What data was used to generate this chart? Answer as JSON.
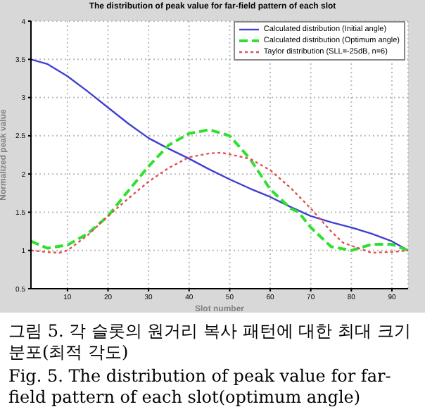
{
  "chart_data": {
    "type": "line",
    "title": "The distribution of peak value for far-field pattern of each slot",
    "xlabel": "Slot number",
    "ylabel": "Normalized peak value",
    "xlim": [
      1,
      94
    ],
    "xticks": [
      10,
      20,
      30,
      40,
      50,
      60,
      70,
      80,
      90
    ],
    "ylim": [
      0.5,
      4
    ],
    "yticks": [
      0.5,
      1,
      1.5,
      2,
      2.5,
      3,
      3.5,
      4
    ],
    "grid": true,
    "legend": "top right",
    "marker": "none",
    "series": [
      {
        "name": "Calculated distribution (Initial angle)",
        "color": "#4040d0",
        "line_style": "solid",
        "x": [
          1,
          5,
          10,
          15,
          20,
          25,
          30,
          35,
          40,
          45,
          50,
          55,
          60,
          65,
          70,
          75,
          80,
          85,
          90,
          94
        ],
        "values": [
          3.5,
          3.44,
          3.28,
          3.08,
          2.87,
          2.66,
          2.47,
          2.33,
          2.2,
          2.06,
          1.93,
          1.81,
          1.7,
          1.57,
          1.45,
          1.37,
          1.3,
          1.22,
          1.12,
          1.0
        ]
      },
      {
        "name": "Calculated distribution (Optimum angle)",
        "color": "#30e030",
        "line_style": "dashed",
        "x": [
          1,
          5,
          10,
          15,
          20,
          25,
          30,
          35,
          40,
          45,
          50,
          55,
          60,
          65,
          67,
          70,
          75,
          80,
          85,
          90,
          94
        ],
        "values": [
          1.12,
          1.03,
          1.07,
          1.22,
          1.45,
          1.78,
          2.1,
          2.38,
          2.53,
          2.58,
          2.5,
          2.2,
          1.8,
          1.55,
          1.5,
          1.3,
          1.05,
          1.0,
          1.08,
          1.08,
          1.0
        ]
      },
      {
        "name": "Taylor distribution (SLL=-25dB, n=6)",
        "color": "#e05050",
        "line_style": "dotted",
        "x": [
          1,
          5,
          8,
          10,
          15,
          20,
          25,
          30,
          35,
          40,
          45,
          48,
          55,
          60,
          65,
          70,
          75,
          78,
          85,
          90,
          94
        ],
        "values": [
          1.0,
          0.98,
          0.97,
          1.0,
          1.2,
          1.45,
          1.68,
          1.9,
          2.08,
          2.22,
          2.27,
          2.28,
          2.2,
          2.05,
          1.82,
          1.55,
          1.25,
          1.1,
          0.97,
          0.98,
          1.0
        ]
      }
    ],
    "annotations": [
      "그림 5. 각 슬롯의 원거리 복사 패턴에 대한 최대 크기 분포(최적 각도)",
      "Fig. 5. The distribution of peak value for far-field pattern of each slot(optimum angle)"
    ]
  }
}
